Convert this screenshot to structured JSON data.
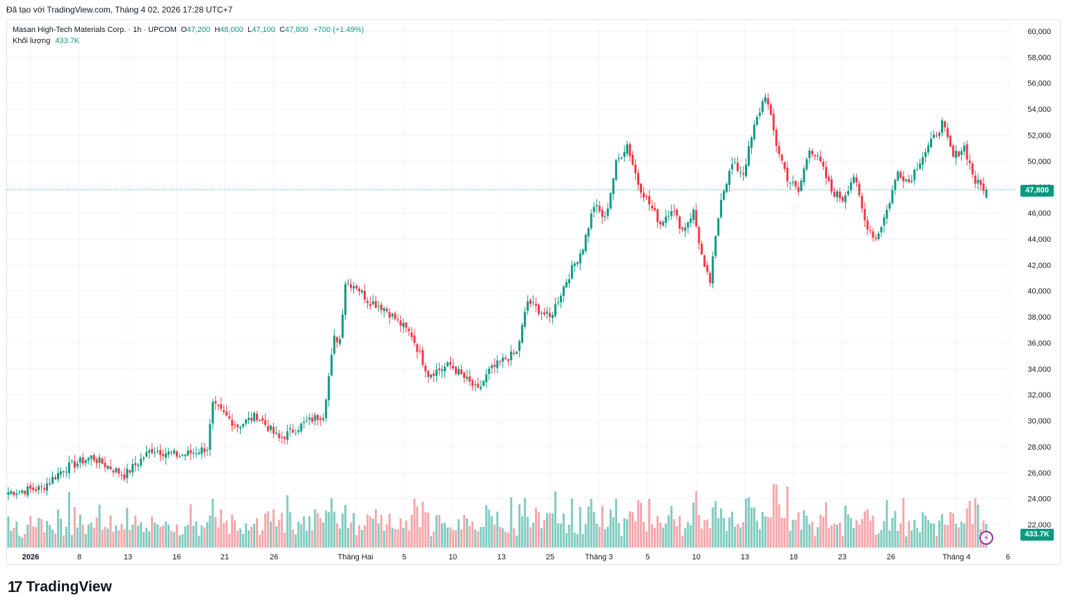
{
  "header": {
    "text": "Đã tạo với TradingView.com, Tháng 4 02, 2026 17:28 UTC+7"
  },
  "legend": {
    "symbol": "Masan High-Tech Materials Corp. · 1h · UPCOM",
    "open_key": "O",
    "open": "47,200",
    "high_key": "H",
    "high": "48,000",
    "low_key": "L",
    "low": "47,100",
    "close_key": "C",
    "close": "47,800",
    "change": "+700 (+1.49%)",
    "volume_label": "Khối lượng",
    "volume_value": "433.7K"
  },
  "badges": {
    "last_price": "47,800",
    "last_volume": "433.7K"
  },
  "brand": {
    "logo": "17",
    "name": "TradingView"
  },
  "colors": {
    "up": "#089981",
    "down": "#f23645",
    "up_vol": "#7fcbbf",
    "down_vol": "#f5a6ab",
    "grid": "#f0f3fa"
  },
  "chart_data": {
    "type": "candlestick",
    "title": "Masan High-Tech Materials Corp. · 1h · UPCOM",
    "ylim": [
      20000,
      61000
    ],
    "y_ticks": [
      "60,000",
      "58,000",
      "56,000",
      "54,000",
      "52,000",
      "50,000",
      "48,000",
      "46,000",
      "44,000",
      "42,000",
      "40,000",
      "38,000",
      "36,000",
      "34,000",
      "32,000",
      "30,000",
      "28,000",
      "26,000",
      "24,000",
      "22,000"
    ],
    "x_ticks": [
      "2026",
      "8",
      "13",
      "16",
      "21",
      "26",
      "Tháng Hai",
      "5",
      "10",
      "13",
      "25",
      "Tháng 3",
      "5",
      "10",
      "13",
      "18",
      "23",
      "26",
      "Tháng 4",
      "6"
    ],
    "last_price": 47800,
    "keypoints": [
      {
        "i": 0,
        "p": 24500
      },
      {
        "i": 12,
        "p": 24800
      },
      {
        "i": 20,
        "p": 26300
      },
      {
        "i": 30,
        "p": 27200
      },
      {
        "i": 42,
        "p": 25800
      },
      {
        "i": 52,
        "p": 27800
      },
      {
        "i": 62,
        "p": 27300
      },
      {
        "i": 72,
        "p": 27900
      },
      {
        "i": 74,
        "p": 31200
      },
      {
        "i": 83,
        "p": 29600
      },
      {
        "i": 90,
        "p": 30400
      },
      {
        "i": 98,
        "p": 28600
      },
      {
        "i": 108,
        "p": 29900
      },
      {
        "i": 114,
        "p": 30500
      },
      {
        "i": 118,
        "p": 36300
      },
      {
        "i": 120,
        "p": 36300
      },
      {
        "i": 122,
        "p": 40700
      },
      {
        "i": 126,
        "p": 40400
      },
      {
        "i": 130,
        "p": 39300
      },
      {
        "i": 136,
        "p": 38700
      },
      {
        "i": 146,
        "p": 36600
      },
      {
        "i": 152,
        "p": 33600
      },
      {
        "i": 160,
        "p": 34300
      },
      {
        "i": 170,
        "p": 32300
      },
      {
        "i": 174,
        "p": 33800
      },
      {
        "i": 180,
        "p": 34800
      },
      {
        "i": 184,
        "p": 35200
      },
      {
        "i": 188,
        "p": 39200
      },
      {
        "i": 196,
        "p": 37900
      },
      {
        "i": 202,
        "p": 40800
      },
      {
        "i": 208,
        "p": 43400
      },
      {
        "i": 212,
        "p": 46600
      },
      {
        "i": 216,
        "p": 45500
      },
      {
        "i": 220,
        "p": 49800
      },
      {
        "i": 224,
        "p": 51300
      },
      {
        "i": 228,
        "p": 48300
      },
      {
        "i": 232,
        "p": 46700
      },
      {
        "i": 236,
        "p": 45200
      },
      {
        "i": 240,
        "p": 46400
      },
      {
        "i": 244,
        "p": 44700
      },
      {
        "i": 248,
        "p": 46100
      },
      {
        "i": 252,
        "p": 41600
      },
      {
        "i": 254,
        "p": 40700
      },
      {
        "i": 258,
        "p": 47300
      },
      {
        "i": 262,
        "p": 49700
      },
      {
        "i": 266,
        "p": 49100
      },
      {
        "i": 270,
        "p": 52600
      },
      {
        "i": 274,
        "p": 55200
      },
      {
        "i": 278,
        "p": 51300
      },
      {
        "i": 282,
        "p": 48700
      },
      {
        "i": 286,
        "p": 47600
      },
      {
        "i": 290,
        "p": 51100
      },
      {
        "i": 294,
        "p": 49800
      },
      {
        "i": 298,
        "p": 47700
      },
      {
        "i": 302,
        "p": 47100
      },
      {
        "i": 306,
        "p": 48900
      },
      {
        "i": 310,
        "p": 45400
      },
      {
        "i": 314,
        "p": 44000
      },
      {
        "i": 318,
        "p": 46200
      },
      {
        "i": 322,
        "p": 49200
      },
      {
        "i": 326,
        "p": 48400
      },
      {
        "i": 330,
        "p": 50100
      },
      {
        "i": 334,
        "p": 51400
      },
      {
        "i": 338,
        "p": 52900
      },
      {
        "i": 342,
        "p": 50300
      },
      {
        "i": 346,
        "p": 51100
      },
      {
        "i": 350,
        "p": 48400
      },
      {
        "i": 354,
        "p": 47800
      }
    ]
  }
}
